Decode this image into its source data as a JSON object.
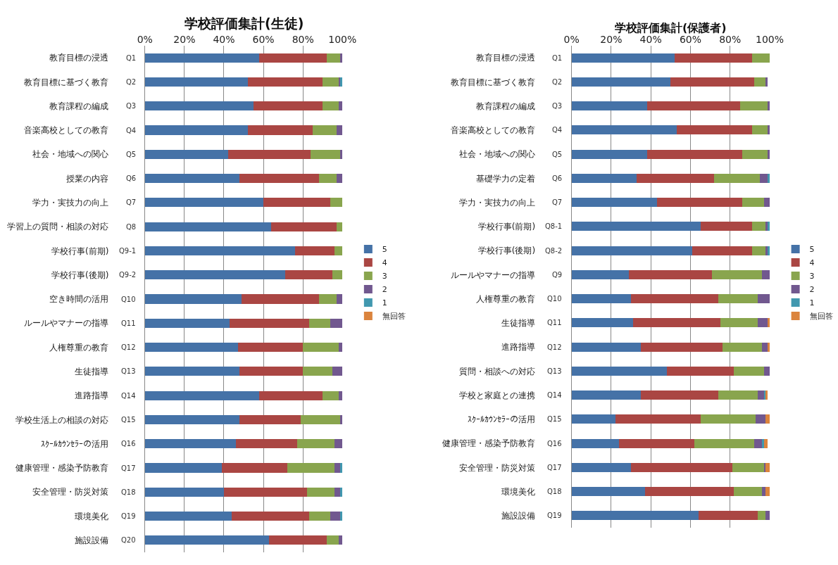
{
  "chart_data": [
    {
      "type": "bar",
      "orientation": "horizontal",
      "stacked": true,
      "title": "学校評価集計(生徒)",
      "categories": [
        "教育目標の浸透",
        "教育目標に基づく教育",
        "教育課程の編成",
        "音楽高校としての教育",
        "社会・地域への関心",
        "授業の内容",
        "学力・実技力の向上",
        "学習上の質問・相談の対応",
        "学校行事(前期)",
        "学校行事(後期)",
        "空き時間の活用",
        "ルールやマナーの指導",
        "人権尊重の教育",
        "生徒指導",
        "進路指導",
        "学校生活上の相談の対応",
        "ｽｸｰﾙｶｳﾝｾﾗｰの活用",
        "健康管理・感染予防教育",
        "安全管理・防災対策",
        "環境美化",
        "施設設備"
      ],
      "annotations": [
        "Q1",
        "Q2",
        "Q3",
        "Q4",
        "Q5",
        "Q6",
        "Q7",
        "Q8",
        "Q9-1",
        "Q9-2",
        "Q10",
        "Q11",
        "Q12",
        "Q13",
        "Q14",
        "Q15",
        "Q16",
        "Q17",
        "Q18",
        "Q19",
        "Q20"
      ],
      "series": [
        {
          "name": "5",
          "color": "#4572a7",
          "values": [
            58,
            52,
            55,
            52,
            42,
            48,
            60,
            64,
            76,
            71,
            49,
            43,
            47,
            48,
            58,
            48,
            46,
            39,
            40,
            44,
            63
          ]
        },
        {
          "name": "4",
          "color": "#aa4643",
          "values": [
            34,
            38,
            35,
            33,
            42,
            40,
            34,
            33,
            20,
            24,
            39,
            40,
            33,
            32,
            32,
            31,
            31,
            33,
            42,
            39,
            29
          ]
        },
        {
          "name": "3",
          "color": "#89a54e",
          "values": [
            7,
            8,
            8,
            12,
            15,
            9,
            6,
            3,
            4,
            5,
            9,
            11,
            18,
            15,
            8,
            20,
            19,
            24,
            14,
            11,
            6
          ]
        },
        {
          "name": "2",
          "color": "#71588f",
          "values": [
            1,
            1,
            2,
            3,
            1,
            3,
            0,
            0,
            0,
            0,
            3,
            6,
            2,
            5,
            2,
            1,
            4,
            3,
            3,
            5,
            2
          ]
        },
        {
          "name": "1",
          "color": "#4198af",
          "values": [
            0,
            1,
            0,
            0,
            0,
            0,
            0,
            0,
            0,
            0,
            0,
            0,
            0,
            0,
            0,
            0,
            0,
            1,
            1,
            1,
            0
          ]
        },
        {
          "name": "無回答",
          "color": "#db843d",
          "values": [
            0,
            0,
            0,
            0,
            0,
            0,
            0,
            0,
            0,
            0,
            0,
            0,
            0,
            0,
            0,
            0,
            0,
            0,
            0,
            0,
            0
          ]
        }
      ],
      "xlim": [
        0,
        100
      ],
      "xticks": [
        {
          "value": 0,
          "label": "0%"
        },
        {
          "value": 20,
          "label": "20%"
        },
        {
          "value": 40,
          "label": "40%"
        },
        {
          "value": 60,
          "label": "60%"
        },
        {
          "value": 80,
          "label": "80%"
        },
        {
          "value": 100,
          "label": "100%"
        }
      ],
      "grid": "x",
      "legend": "right"
    },
    {
      "type": "bar",
      "orientation": "horizontal",
      "stacked": true,
      "title": "学校評価集計(保護者)",
      "categories": [
        "教育目標の浸透",
        "教育目標に基づく教育",
        "教育課程の編成",
        "音楽高校としての教育",
        "社会・地域への関心",
        "基礎学力の定着",
        "学力・実技力の向上",
        "学校行事(前期)",
        "学校行事(後期)",
        "ルールやマナーの指導",
        "人権尊重の教育",
        "生徒指導",
        "進路指導",
        "質問・相談への対応",
        "学校と家庭との連携",
        "ｽｸｰﾙｶｳﾝｾﾗｰの活用",
        "健康管理・感染予防教育",
        "安全管理・防災対策",
        "環境美化",
        "施設設備"
      ],
      "annotations": [
        "Q1",
        "Q2",
        "Q3",
        "Q4",
        "Q5",
        "Q6",
        "Q7",
        "Q8-1",
        "Q8-2",
        "Q9",
        "Q10",
        "Q11",
        "Q12",
        "Q13",
        "Q14",
        "Q15",
        "Q16",
        "Q17",
        "Q18",
        "Q19"
      ],
      "series": [
        {
          "name": "5",
          "color": "#4572a7",
          "values": [
            52,
            50,
            38,
            53,
            38,
            33,
            43,
            65,
            61,
            29,
            30,
            31,
            35,
            48,
            35,
            22,
            24,
            30,
            37,
            64
          ]
        },
        {
          "name": "4",
          "color": "#aa4643",
          "values": [
            39,
            42,
            47,
            38,
            48,
            39,
            43,
            26,
            30,
            42,
            44,
            44,
            41,
            34,
            39,
            43,
            38,
            51,
            45,
            30
          ]
        },
        {
          "name": "3",
          "color": "#89a54e",
          "values": [
            9,
            6,
            14,
            8,
            13,
            23,
            11,
            7,
            7,
            25,
            20,
            19,
            20,
            15,
            20,
            28,
            30,
            16,
            14,
            4
          ]
        },
        {
          "name": "2",
          "color": "#71588f",
          "values": [
            0,
            1,
            1,
            1,
            1,
            4,
            3,
            1,
            1,
            4,
            6,
            5,
            3,
            3,
            3,
            5,
            4,
            1,
            2,
            2
          ]
        },
        {
          "name": "1",
          "color": "#4198af",
          "values": [
            0,
            0,
            0,
            0,
            0,
            1,
            0,
            1,
            1,
            0,
            0,
            0,
            0,
            0,
            1,
            0,
            1,
            0,
            0,
            0
          ]
        },
        {
          "name": "無回答",
          "color": "#db843d",
          "values": [
            0,
            0,
            0,
            0,
            0,
            0,
            0,
            0,
            0,
            0,
            0,
            1,
            1,
            0,
            1,
            2,
            2,
            2,
            2,
            0
          ]
        }
      ],
      "xlim": [
        0,
        100
      ],
      "xticks": [
        {
          "value": 0,
          "label": "0%"
        },
        {
          "value": 20,
          "label": "20%"
        },
        {
          "value": 40,
          "label": "40%"
        },
        {
          "value": 60,
          "label": "60%"
        },
        {
          "value": 80,
          "label": "80%"
        },
        {
          "value": 100,
          "label": "100%"
        }
      ],
      "grid": "x",
      "legend": "right"
    }
  ]
}
